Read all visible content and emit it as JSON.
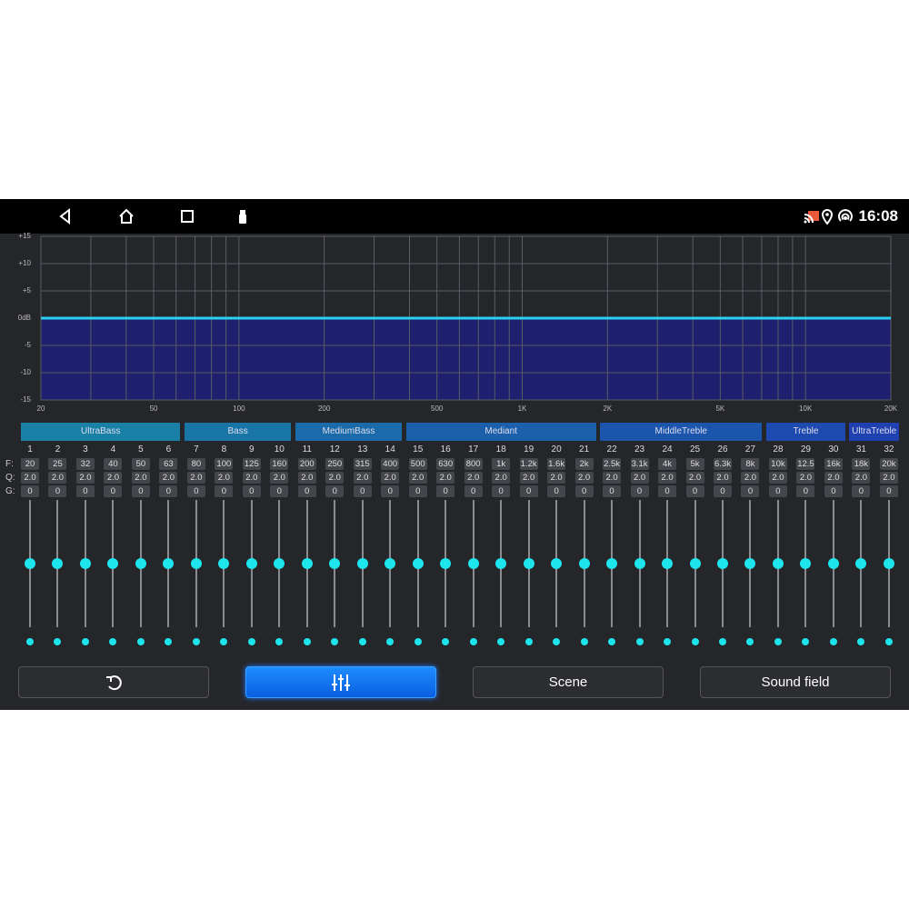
{
  "status": {
    "time": "16:08",
    "nav_icons": [
      "back-icon",
      "home-icon",
      "recents-icon",
      "usb-icon"
    ],
    "status_icons": [
      "cast-icon",
      "location-icon",
      "hotspot-icon"
    ]
  },
  "graph": {
    "y_labels": [
      "+15",
      "+10",
      "+5",
      "0dB",
      "-5",
      "-10",
      "-15"
    ],
    "x_labels": [
      "20",
      "50",
      "100",
      "200",
      "500",
      "1K",
      "2K",
      "5K",
      "10K",
      "20K"
    ],
    "x_ticks": [
      20,
      50,
      100,
      200,
      500,
      1000,
      2000,
      5000,
      10000,
      20000
    ],
    "ylim": [
      -15,
      15
    ],
    "xlim": [
      20,
      20000
    ],
    "scale": "log",
    "curve_db": 0,
    "line_color": "#2ad0f0",
    "fill_color": "#1e1f6e"
  },
  "categories": [
    {
      "label": "UltraBass",
      "from": 1,
      "to": 6
    },
    {
      "label": "Bass",
      "from": 7,
      "to": 10
    },
    {
      "label": "MediumBass",
      "from": 11,
      "to": 14
    },
    {
      "label": "Mediant",
      "from": 15,
      "to": 21
    },
    {
      "label": "MiddleTreble",
      "from": 22,
      "to": 27
    },
    {
      "label": "Treble",
      "from": 28,
      "to": 30
    },
    {
      "label": "UltraTreble",
      "from": 31,
      "to": 32
    }
  ],
  "row_labels": {
    "f": "F:",
    "q": "Q:",
    "g": "G:"
  },
  "freqs": [
    "20",
    "25",
    "32",
    "40",
    "50",
    "63",
    "80",
    "100",
    "125",
    "160",
    "200",
    "250",
    "315",
    "400",
    "500",
    "630",
    "800",
    "1k",
    "1.2k",
    "1.6k",
    "2k",
    "2.5k",
    "3.1k",
    "4k",
    "5k",
    "6.3k",
    "8k",
    "10k",
    "12.5",
    "16k",
    "18k",
    "20k"
  ],
  "q": "2.0",
  "gain": "0",
  "slider_level": 0.5,
  "buttons": [
    {
      "name": "reset",
      "icon": "reset-icon",
      "label": ""
    },
    {
      "name": "eq",
      "icon": "equalizer-icon",
      "label": "",
      "active": true
    },
    {
      "name": "scene",
      "label": "Scene"
    },
    {
      "name": "sound-field",
      "label": "Sound field"
    }
  ]
}
